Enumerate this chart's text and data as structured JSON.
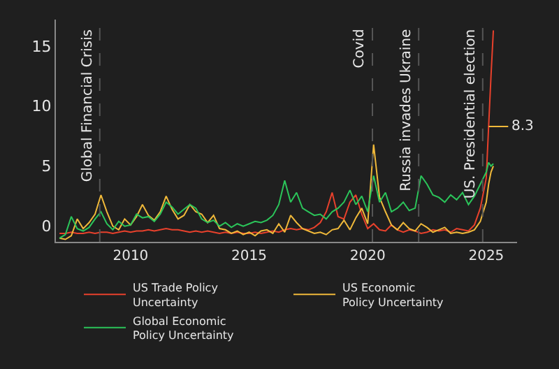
{
  "chart_data": {
    "type": "line",
    "x": [
      2007,
      2007.25,
      2007.5,
      2007.75,
      2008,
      2008.25,
      2008.5,
      2008.75,
      2009,
      2009.25,
      2009.5,
      2009.75,
      2010,
      2010.25,
      2010.5,
      2010.75,
      2011,
      2011.25,
      2011.5,
      2011.75,
      2012,
      2012.25,
      2012.5,
      2012.75,
      2013,
      2013.25,
      2013.5,
      2013.75,
      2014,
      2014.25,
      2014.5,
      2014.75,
      2015,
      2015.25,
      2015.5,
      2015.75,
      2016,
      2016.25,
      2016.5,
      2016.75,
      2017,
      2017.25,
      2017.5,
      2017.75,
      2018,
      2018.25,
      2018.5,
      2018.75,
      2019,
      2019.25,
      2019.5,
      2019.75,
      2020,
      2020.25,
      2020.5,
      2020.75,
      2021,
      2021.25,
      2021.5,
      2021.75,
      2022,
      2022.25,
      2022.5,
      2022.75,
      2023,
      2023.25,
      2023.5,
      2023.75,
      2024,
      2024.25,
      2024.5,
      2024.75,
      2025,
      2025.1,
      2025.2,
      2025.3
    ],
    "series": [
      {
        "name": "US Trade Policy Uncertainty",
        "color": "#e8412c",
        "values": [
          -0.6,
          -0.6,
          -0.5,
          -0.6,
          -0.6,
          -0.5,
          -0.6,
          -0.5,
          -0.5,
          -0.6,
          -0.5,
          -0.4,
          -0.5,
          -0.4,
          -0.4,
          -0.3,
          -0.4,
          -0.3,
          -0.2,
          -0.3,
          -0.3,
          -0.4,
          -0.5,
          -0.4,
          -0.5,
          -0.4,
          -0.5,
          -0.6,
          -0.5,
          -0.6,
          -0.5,
          -0.6,
          -0.6,
          -0.5,
          -0.6,
          -0.5,
          -0.4,
          -0.5,
          -0.3,
          -0.2,
          -0.3,
          -0.2,
          -0.3,
          -0.1,
          0.3,
          1.2,
          2.8,
          0.8,
          0.6,
          2.0,
          2.6,
          1.0,
          -0.2,
          0.2,
          -0.3,
          -0.4,
          0.1,
          -0.3,
          -0.5,
          -0.3,
          -0.4,
          -0.6,
          -0.5,
          -0.3,
          -0.4,
          -0.3,
          -0.5,
          -0.2,
          -0.3,
          -0.4,
          0.1,
          1.5,
          4.0,
          8.3,
          12.5,
          16.3
        ]
      },
      {
        "name": "US Economic Policy Uncertainty",
        "color": "#f0b93a",
        "values": [
          -1.0,
          -1.1,
          -0.8,
          0.6,
          -0.2,
          0.3,
          1.0,
          2.6,
          1.2,
          0.0,
          -0.3,
          0.6,
          0.1,
          0.8,
          1.8,
          0.9,
          0.5,
          1.2,
          2.5,
          1.4,
          0.6,
          0.9,
          1.8,
          1.2,
          1.0,
          0.3,
          0.9,
          -0.2,
          -0.3,
          -0.6,
          -0.4,
          -0.7,
          -0.5,
          -0.8,
          -0.4,
          -0.3,
          -0.6,
          0.2,
          -0.5,
          0.9,
          0.3,
          -0.2,
          -0.4,
          -0.6,
          -0.5,
          -0.7,
          -0.3,
          -0.2,
          0.5,
          -0.3,
          0.7,
          1.5,
          0.2,
          6.8,
          2.4,
          1.2,
          0.1,
          -0.3,
          0.3,
          -0.2,
          -0.4,
          0.2,
          -0.1,
          -0.5,
          -0.3,
          -0.1,
          -0.6,
          -0.5,
          -0.6,
          -0.5,
          -0.3,
          0.4,
          2.0,
          3.5,
          4.5,
          5.0
        ]
      },
      {
        "name": "Global Economic Policy Uncertainty",
        "color": "#2bc55a",
        "values": [
          -1.0,
          -0.7,
          0.8,
          -0.2,
          -0.4,
          -0.1,
          0.6,
          1.2,
          0.2,
          -0.3,
          0.4,
          0.0,
          0.1,
          1.0,
          0.7,
          0.8,
          0.4,
          1.0,
          2.0,
          1.6,
          1.0,
          1.4,
          1.8,
          1.5,
          0.6,
          0.3,
          0.5,
          0.0,
          0.3,
          -0.1,
          0.2,
          0.0,
          0.2,
          0.4,
          0.3,
          0.5,
          0.9,
          1.8,
          3.8,
          2.0,
          2.8,
          1.5,
          1.2,
          0.9,
          1.0,
          0.6,
          1.2,
          1.5,
          2.0,
          3.0,
          1.8,
          2.5,
          1.2,
          4.2,
          2.0,
          2.8,
          1.2,
          1.5,
          2.0,
          1.3,
          1.5,
          4.2,
          3.5,
          2.6,
          2.4,
          2.0,
          2.6,
          2.2,
          2.8,
          1.8,
          2.5,
          3.5,
          4.5,
          5.3,
          5.0,
          5.2
        ]
      }
    ],
    "xlim": [
      2006.85,
      2026.3
    ],
    "xticks": [
      2010,
      2015,
      2020,
      2025
    ],
    "ylim": [
      -1.3,
      17.2
    ],
    "yticks": [
      0,
      5,
      10,
      15
    ],
    "grid": false,
    "legend": "bottom",
    "line_style": "solid",
    "marker": "none",
    "ref_lines": [
      {
        "axis": "x",
        "value": 2008.7,
        "label": "Global Financial Crisis",
        "color": "#555555",
        "line_style": "dashed"
      },
      {
        "axis": "x",
        "value": 2020.2,
        "label": "Covid",
        "color": "#555555",
        "line_style": "dashed"
      },
      {
        "axis": "x",
        "value": 2022.15,
        "label": "Russia invades Ukraine",
        "color": "#555555",
        "line_style": "dashed"
      },
      {
        "axis": "x",
        "value": 2024.85,
        "label": "US. Presidential election",
        "color": "#555555",
        "line_style": "dashed"
      }
    ],
    "annotations": [
      {
        "text": "8.3",
        "x": 2025.1,
        "y": 8.3
      }
    ]
  }
}
